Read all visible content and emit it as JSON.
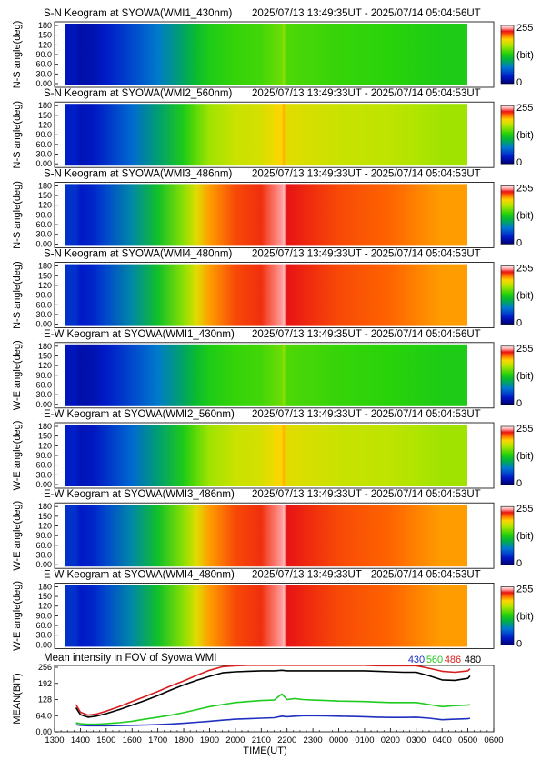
{
  "colorbar": {
    "max_label": "255",
    "unit_label": "(bit)",
    "min_label": "0"
  },
  "keogram_y_ticks": [
    "180",
    "150",
    "120",
    "90.0",
    "60.0",
    "30.0",
    "0.00"
  ],
  "panels": [
    {
      "title": "S-N Keogram at SYOWA(WMI1_430nm)",
      "time_range": "2025/07/13 13:49:35UT - 2025/07/14 05:04:56UT",
      "ylabel": "N-S angle(deg)",
      "filter": "430",
      "peak_level": 0.62
    },
    {
      "title": "S-N Keogram at SYOWA(WMI2_560nm)",
      "time_range": "2025/07/13 13:49:33UT - 2025/07/14 05:04:53UT",
      "ylabel": "N-S angle(deg)",
      "filter": "560",
      "peak_level": 0.8
    },
    {
      "title": "S-N Keogram at SYOWA(WMI3_486nm)",
      "time_range": "2025/07/13 13:49:33UT - 2025/07/14 05:04:53UT",
      "ylabel": "N-S angle(deg)",
      "filter": "486",
      "peak_level": 1.0
    },
    {
      "title": "S-N Keogram at SYOWA(WMI4_480nm)",
      "time_range": "2025/07/13 13:49:33UT - 2025/07/14 05:04:53UT",
      "ylabel": "N-S angle(deg)",
      "filter": "480",
      "peak_level": 1.0
    },
    {
      "title": "E-W Keogram at SYOWA(WMI1_430nm)",
      "time_range": "2025/07/13 13:49:35UT - 2025/07/14 05:04:56UT",
      "ylabel": "W-E angle(deg)",
      "filter": "430",
      "peak_level": 0.62
    },
    {
      "title": "E-W Keogram at SYOWA(WMI2_560nm)",
      "time_range": "2025/07/13 13:49:33UT - 2025/07/14 05:04:53UT",
      "ylabel": "W-E angle(deg)",
      "filter": "560",
      "peak_level": 0.8
    },
    {
      "title": "E-W Keogram at SYOWA(WMI3_486nm)",
      "time_range": "2025/07/13 13:49:33UT - 2025/07/14 05:04:53UT",
      "ylabel": "W-E angle(deg)",
      "filter": "486",
      "peak_level": 1.0
    },
    {
      "title": "E-W Keogram at SYOWA(WMI4_480nm)",
      "time_range": "2025/07/13 13:49:33UT - 2025/07/14 05:04:53UT",
      "ylabel": "W-E angle(deg)",
      "filter": "480",
      "peak_level": 1.0
    }
  ],
  "chart_data": {
    "type": "line",
    "title": "Mean intensity in FOV of Syowa WMI",
    "xlabel": "TIME(UT)",
    "ylabel": "MEAN(BIT)",
    "x_tick_labels": [
      "1300",
      "1400",
      "1500",
      "1600",
      "1700",
      "1800",
      "1900",
      "2000",
      "2100",
      "2200",
      "2300",
      "0000",
      "0100",
      "0200",
      "0300",
      "0400",
      "0500",
      "0600"
    ],
    "y_tick_labels": [
      "256",
      "192",
      "128",
      "64.0",
      "0.00"
    ],
    "ylim": [
      0,
      256
    ],
    "xlim_hours_ut": [
      13,
      30
    ],
    "x_hours_ut": [
      13.83,
      14.0,
      14.3,
      14.6,
      15.0,
      15.5,
      16.0,
      16.5,
      17.0,
      17.5,
      18.0,
      18.5,
      19.0,
      19.5,
      20.0,
      20.5,
      21.0,
      21.5,
      21.8,
      22.0,
      22.3,
      22.6,
      23.0,
      23.5,
      24.0,
      24.5,
      25.0,
      25.5,
      26.0,
      26.5,
      27.0,
      27.5,
      28.0,
      28.5,
      29.0,
      29.08
    ],
    "series": [
      {
        "name": "430",
        "color": "#1f2fbf",
        "values": [
          28,
          26,
          24,
          24,
          24,
          25,
          26,
          27,
          29,
          31,
          34,
          38,
          42,
          46,
          50,
          52,
          54,
          56,
          62,
          60,
          62,
          64,
          64,
          63,
          62,
          61,
          60,
          58,
          57,
          57,
          58,
          54,
          48,
          50,
          52,
          54
        ]
      },
      {
        "name": "560",
        "color": "#1fcc1f",
        "values": [
          36,
          32,
          30,
          30,
          32,
          36,
          42,
          50,
          58,
          66,
          76,
          88,
          100,
          108,
          116,
          120,
          124,
          126,
          150,
          128,
          132,
          128,
          126,
          124,
          122,
          121,
          120,
          118,
          116,
          116,
          116,
          108,
          100,
          104,
          106,
          108
        ]
      },
      {
        "name": "486",
        "color": "#d81e1e",
        "values": [
          108,
          78,
          66,
          70,
          82,
          100,
          120,
          140,
          160,
          182,
          202,
          224,
          244,
          258,
          262,
          264,
          264,
          266,
          268,
          266,
          266,
          266,
          264,
          264,
          264,
          264,
          264,
          262,
          262,
          262,
          262,
          252,
          240,
          236,
          242,
          250
        ]
      },
      {
        "name": "480",
        "color": "#000000",
        "values": [
          96,
          68,
          58,
          62,
          72,
          88,
          106,
          124,
          144,
          166,
          186,
          204,
          220,
          234,
          238,
          240,
          242,
          242,
          244,
          242,
          242,
          242,
          242,
          242,
          242,
          242,
          242,
          240,
          238,
          236,
          236,
          222,
          206,
          204,
          212,
          222
        ]
      }
    ]
  }
}
